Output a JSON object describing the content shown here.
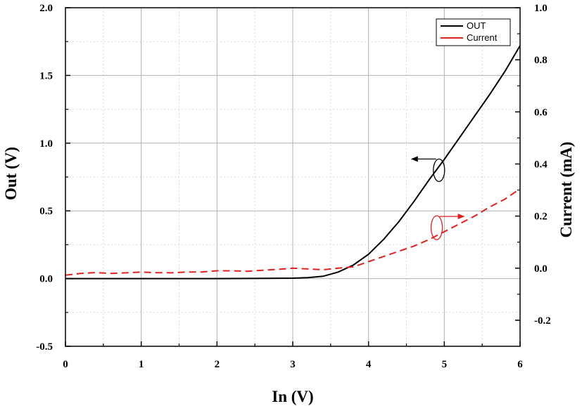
{
  "chart_data": {
    "type": "line",
    "xlabel": "In (V)",
    "ylabel": "Out (V)",
    "y2label": "Current (mA)",
    "xlim": [
      0,
      6
    ],
    "ylim": [
      -0.5,
      2.0
    ],
    "y2lim": [
      -0.3,
      1.0
    ],
    "x_ticks": [
      "0",
      "1",
      "2",
      "3",
      "4",
      "5",
      "6"
    ],
    "y_ticks": [
      "-0.5",
      "0.0",
      "0.5",
      "1.0",
      "1.5",
      "2.0"
    ],
    "y2_ticks": [
      "-0.2",
      "0.0",
      "0.2",
      "0.4",
      "0.6",
      "0.8",
      "1.0"
    ],
    "grid": true,
    "legend_position": "top-right",
    "series": [
      {
        "name": "OUT",
        "axis": "left",
        "color": "#000000",
        "dash": "solid",
        "x": [
          0,
          1,
          2,
          3,
          3.2,
          3.4,
          3.6,
          3.8,
          4.0,
          4.2,
          4.4,
          4.6,
          4.8,
          5.0,
          5.2,
          5.4,
          5.6,
          5.8,
          6.0
        ],
        "y": [
          0,
          0,
          0,
          0.003,
          0.007,
          0.017,
          0.048,
          0.1,
          0.18,
          0.29,
          0.42,
          0.57,
          0.73,
          0.88,
          1.04,
          1.2,
          1.36,
          1.53,
          1.72
        ]
      },
      {
        "name": "Current",
        "axis": "right",
        "color": "#e32020",
        "dash": "dashed",
        "x": [
          0,
          0.2,
          0.4,
          0.6,
          0.8,
          1.0,
          1.2,
          1.4,
          1.6,
          1.8,
          2.0,
          2.2,
          2.4,
          2.6,
          2.8,
          3.0,
          3.2,
          3.4,
          3.6,
          3.8,
          4.0,
          4.2,
          4.4,
          4.6,
          4.8,
          5.0,
          5.2,
          5.4,
          5.6,
          5.8,
          6.0
        ],
        "y": [
          -0.027,
          -0.02,
          -0.017,
          -0.02,
          -0.018,
          -0.015,
          -0.017,
          -0.018,
          -0.015,
          -0.015,
          -0.01,
          -0.01,
          -0.012,
          -0.008,
          -0.005,
          0.0,
          -0.003,
          -0.006,
          0.0,
          0.005,
          0.025,
          0.045,
          0.065,
          0.085,
          0.11,
          0.14,
          0.17,
          0.2,
          0.235,
          0.265,
          0.305
        ]
      }
    ],
    "annotations": [
      {
        "type": "ellipse-arrow",
        "target": "OUT",
        "direction": "left",
        "at": [
          4.93,
          0.8
        ]
      },
      {
        "type": "ellipse-arrow",
        "target": "Current",
        "direction": "right",
        "at": [
          4.9,
          0.15
        ]
      }
    ]
  }
}
